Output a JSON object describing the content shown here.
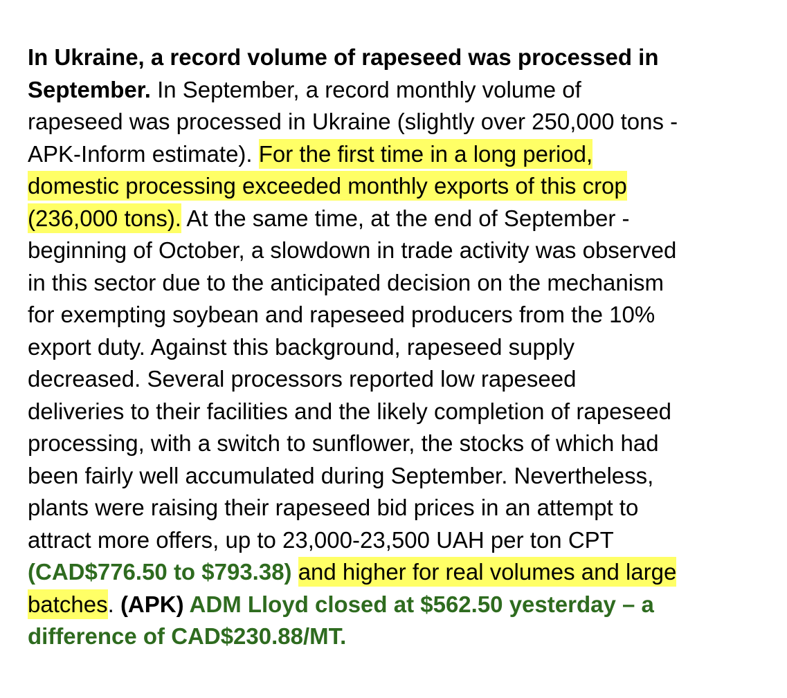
{
  "headline_part1": "In Ukraine, a record volume of rapeseed was processed in",
  "headline_part2": "September.",
  "lines": [
    " In September, a record monthly volume of",
    "rapeseed was processed in Ukraine (slightly over 250,000 tons -",
    "APK-Inform estimate). ",
    "For the first time in a long period,",
    "domestic processing exceeded monthly exports of this crop",
    "(236,000 tons).",
    " At the same time, at the end of September -",
    "beginning of October, a slowdown in trade activity was observed",
    "in this sector due to the anticipated decision on the mechanism",
    "for exempting soybean and rapeseed producers from the 10%",
    "export duty. Against this background, rapeseed supply",
    "decreased. Several processors reported low rapeseed",
    "deliveries to their facilities and the likely completion of rapeseed",
    "processing, with a switch to sunflower, the stocks of which had",
    "been fairly well accumulated during September. Nevertheless,",
    "plants were raising their rapeseed bid prices in an attempt to",
    "attract more offers, up to 23,000-23,500 UAH per ton CPT",
    "(CAD$776.50 to $793.38)",
    " ",
    "and higher for real volumes and large",
    "batches",
    ". ",
    "(APK)",
    " ADM Lloyd closed at $562.50 yesterday – a",
    "difference of CAD$230.88/MT."
  ],
  "colors": {
    "highlight": "#ffff66",
    "annotation_green": "#2e6b1f",
    "text": "#000000"
  }
}
